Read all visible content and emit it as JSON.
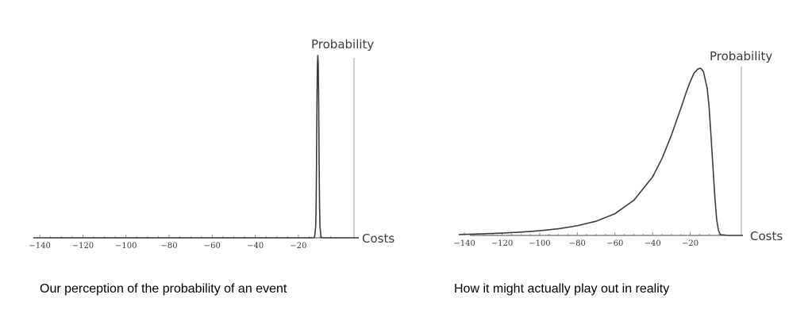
{
  "chart_data": [
    {
      "type": "line",
      "title": "",
      "xlabel": "Costs",
      "ylabel": "Probability",
      "xlim": [
        -143,
        8
      ],
      "ylim": [
        0,
        1
      ],
      "x_ticks": [
        -140,
        -120,
        -100,
        -80,
        -60,
        -40,
        -20
      ],
      "tick_labels": [
        "−140",
        "−120",
        "−100",
        "−80",
        "−60",
        "−40",
        "−20"
      ],
      "caption": "Our perception of the probability of an event",
      "series": [
        {
          "x": [
            -143,
            -140,
            -120,
            -100,
            -80,
            -60,
            -40,
            -20,
            -13,
            -12.5,
            -12,
            -11.8,
            -11.6,
            -11.4,
            -11.2,
            -11.0,
            -10.8,
            -10.6,
            -10.4,
            -10.2,
            -10,
            -9.5,
            -9,
            0,
            8
          ],
          "y": [
            0,
            0,
            0,
            0,
            0,
            0,
            0,
            0,
            0,
            0.005,
            0.06,
            0.17,
            0.42,
            0.74,
            0.95,
            1.0,
            0.95,
            0.74,
            0.42,
            0.17,
            0.06,
            0.005,
            0,
            0,
            0
          ]
        }
      ]
    },
    {
      "type": "line",
      "title": "",
      "xlabel": "Costs",
      "ylabel": "Probability",
      "xlim": [
        -143,
        8
      ],
      "ylim": [
        0,
        1
      ],
      "x_ticks": [
        -140,
        -120,
        -100,
        -80,
        -60,
        -40,
        -20
      ],
      "tick_labels": [
        "−140",
        "−120",
        "−100",
        "−80",
        "−60",
        "−40",
        "−20"
      ],
      "caption": "How it might actually play out in reality",
      "series": [
        {
          "x": [
            -143,
            -140,
            -130,
            -120,
            -110,
            -100,
            -90,
            -80,
            -70,
            -60,
            -50,
            -40,
            -35,
            -30,
            -25,
            -22,
            -20,
            -18,
            -16,
            -14.5,
            -13,
            -11,
            -10,
            -9,
            -8,
            -7,
            -6,
            -5,
            -4,
            0,
            8
          ],
          "y": [
            0.005,
            0.006,
            0.01,
            0.014,
            0.02,
            0.028,
            0.04,
            0.058,
            0.085,
            0.13,
            0.21,
            0.35,
            0.46,
            0.6,
            0.76,
            0.86,
            0.92,
            0.97,
            0.995,
            1.0,
            0.98,
            0.88,
            0.77,
            0.6,
            0.42,
            0.24,
            0.1,
            0.03,
            0.005,
            0,
            0
          ]
        }
      ]
    }
  ]
}
